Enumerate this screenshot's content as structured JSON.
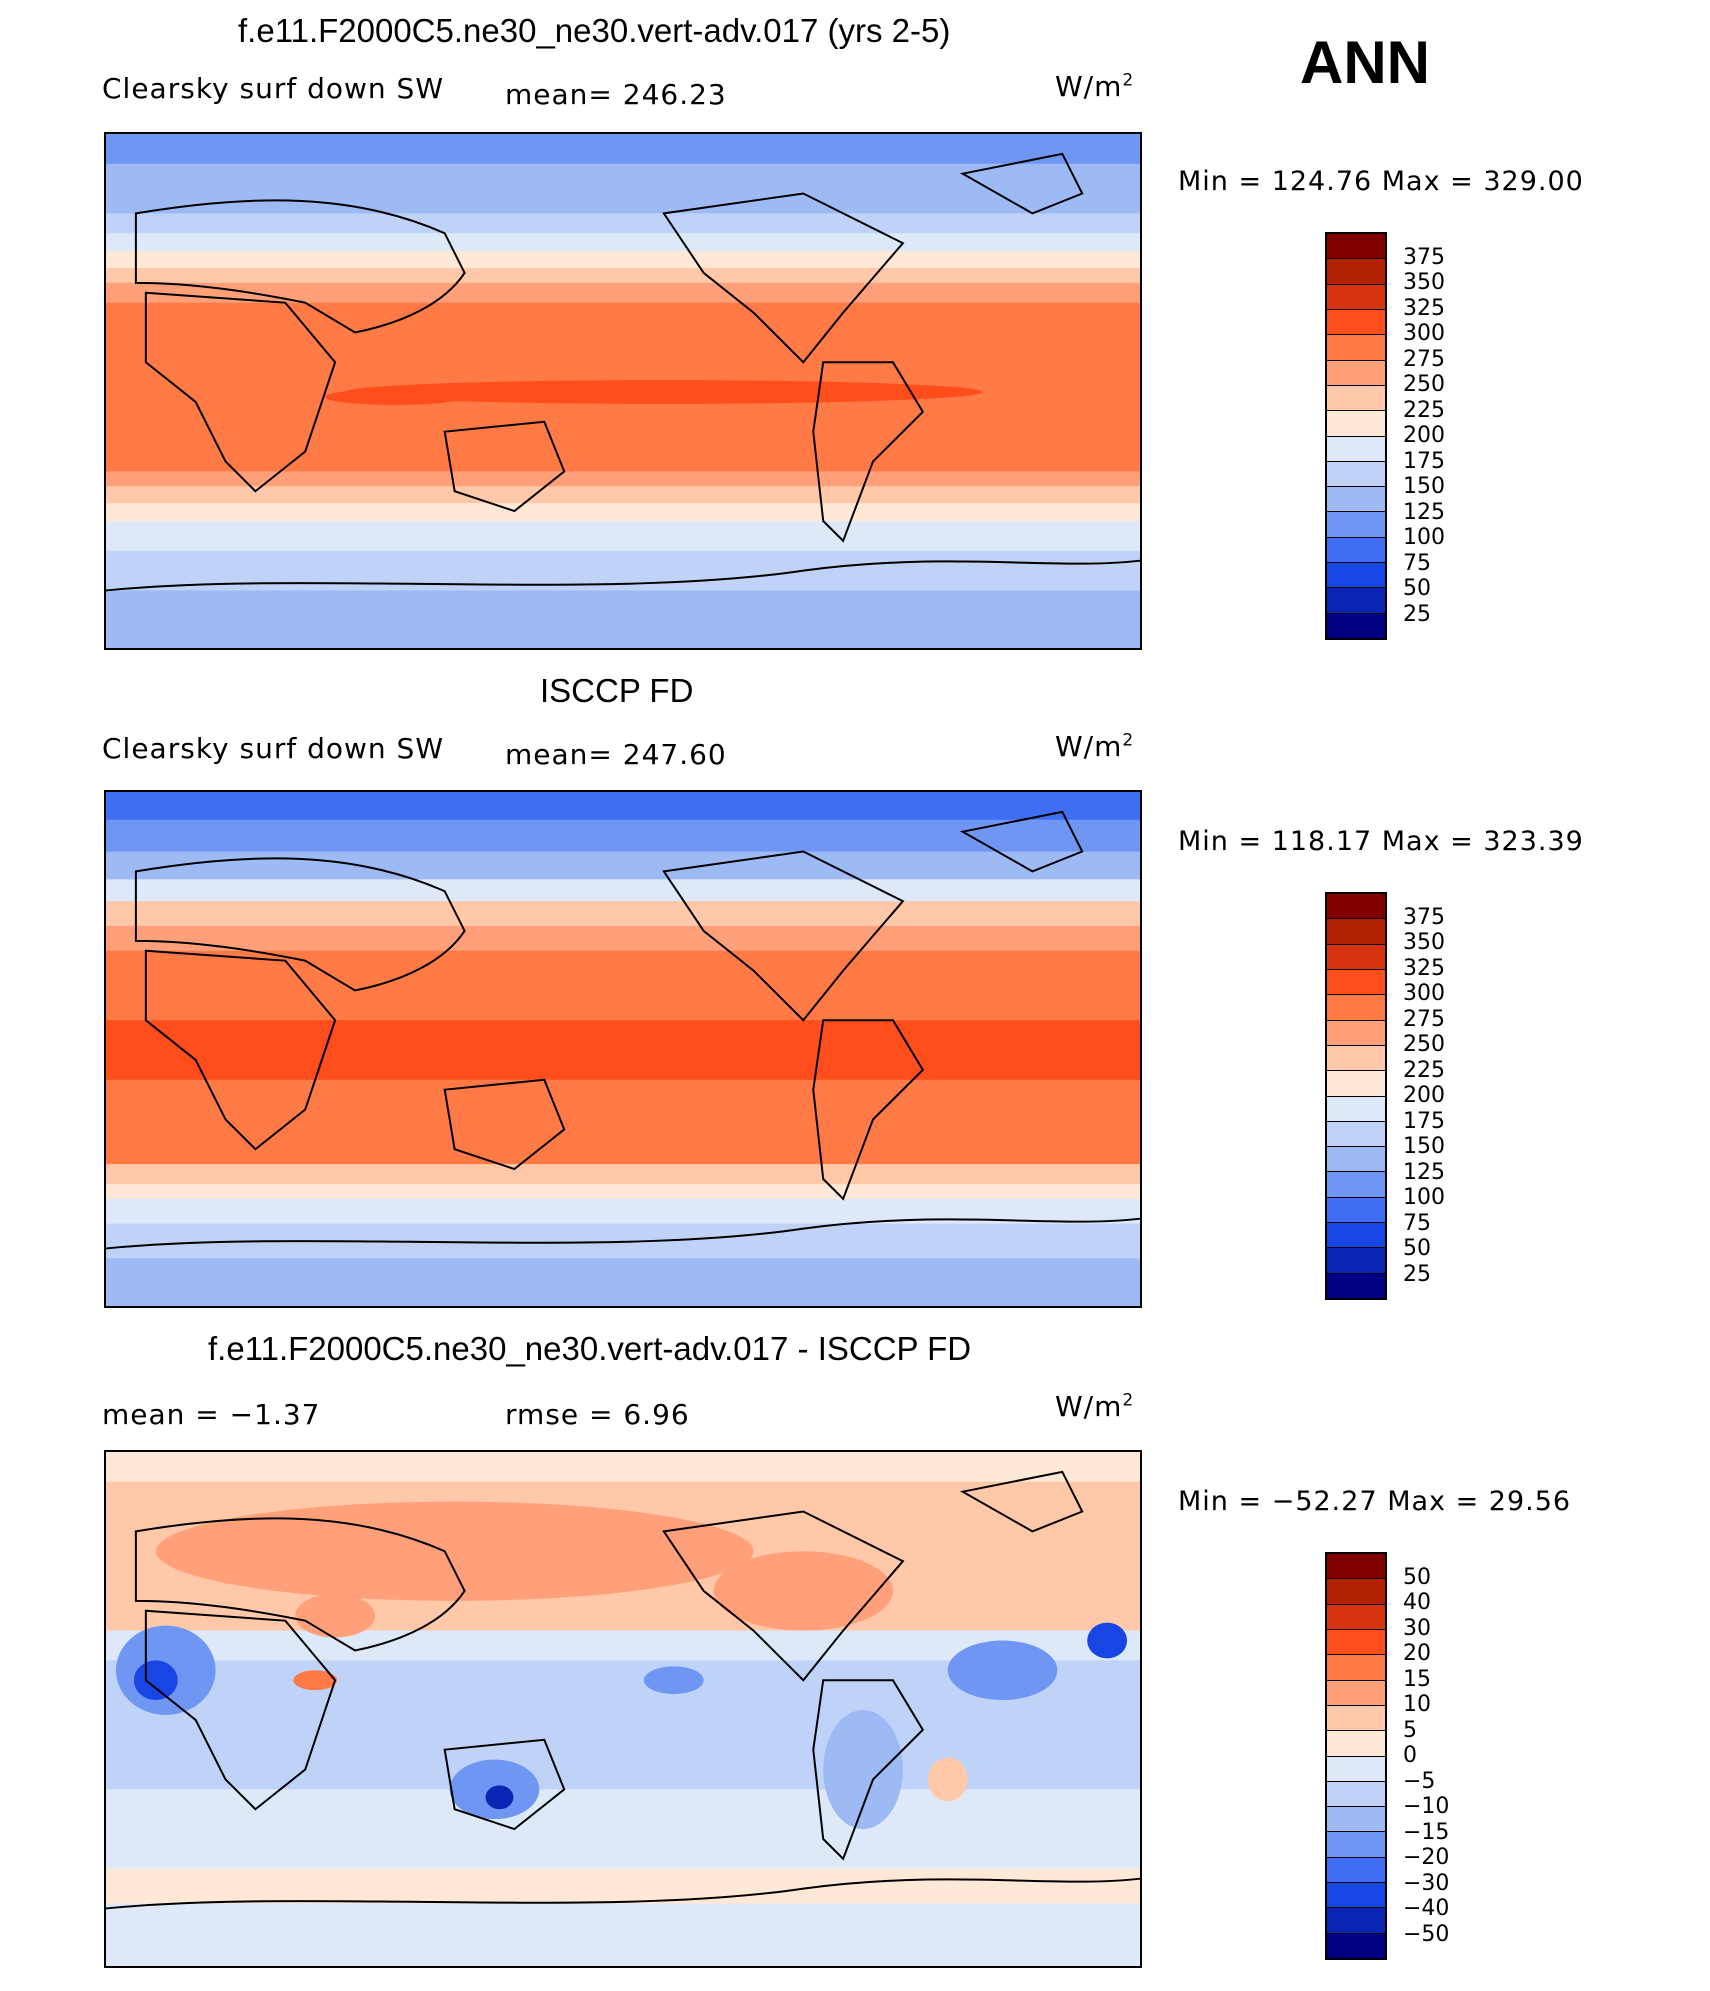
{
  "season": "ANN",
  "panels": [
    {
      "title": "f.e11.F2000C5.ne30_ne30.vert-adv.017 (yrs 2-5)",
      "left_label": "Clearsky surf down SW",
      "mid_label": "mean= 246.23",
      "units_base": "W/m",
      "units_exp": "2",
      "minmax": "Min  =  124.76  Max  =  329.00",
      "levels": [
        "375",
        "350",
        "325",
        "300",
        "275",
        "250",
        "225",
        "200",
        "175",
        "150",
        "125",
        "100",
        "75",
        "50",
        "25"
      ],
      "colors": [
        "#800000",
        "#b22200",
        "#d8330f",
        "#ff4d1c",
        "#ff7a44",
        "#ffa07a",
        "#ffc8a8",
        "#ffe8d6",
        "#dde9f9",
        "#bed3f7",
        "#9dbaf5",
        "#6f96f3",
        "#3f6ef2",
        "#1846e4",
        "#0a24b4",
        "#000080"
      ]
    },
    {
      "title": "ISCCP FD",
      "left_label": "Clearsky surf down SW",
      "mid_label": "mean= 247.60",
      "units_base": "W/m",
      "units_exp": "2",
      "minmax": "Min  =  118.17  Max  =  323.39",
      "levels": [
        "375",
        "350",
        "325",
        "300",
        "275",
        "250",
        "225",
        "200",
        "175",
        "150",
        "125",
        "100",
        "75",
        "50",
        "25"
      ],
      "colors": [
        "#800000",
        "#b22200",
        "#d8330f",
        "#ff4d1c",
        "#ff7a44",
        "#ffa07a",
        "#ffc8a8",
        "#ffe8d6",
        "#dde9f9",
        "#bed3f7",
        "#9dbaf5",
        "#6f96f3",
        "#3f6ef2",
        "#1846e4",
        "#0a24b4",
        "#000080"
      ]
    },
    {
      "title": "f.e11.F2000C5.ne30_ne30.vert-adv.017 - ISCCP FD",
      "left_label": "mean =    −1.37",
      "mid_label": "rmse =     6.96",
      "units_base": "W/m",
      "units_exp": "2",
      "minmax": "Min  =  −52.27  Max  =    29.56",
      "levels": [
        "50",
        "40",
        "30",
        "20",
        "15",
        "10",
        "5",
        "0",
        "−5",
        "−10",
        "−15",
        "−20",
        "−30",
        "−40",
        "−50"
      ],
      "colors": [
        "#800000",
        "#b22200",
        "#d8330f",
        "#ff4d1c",
        "#ff7a44",
        "#ffa07a",
        "#ffc8a8",
        "#ffe8d6",
        "#dde9f9",
        "#bed3f7",
        "#9dbaf5",
        "#6f96f3",
        "#3f6ef2",
        "#1846e4",
        "#0a24b4",
        "#000080"
      ]
    }
  ]
}
